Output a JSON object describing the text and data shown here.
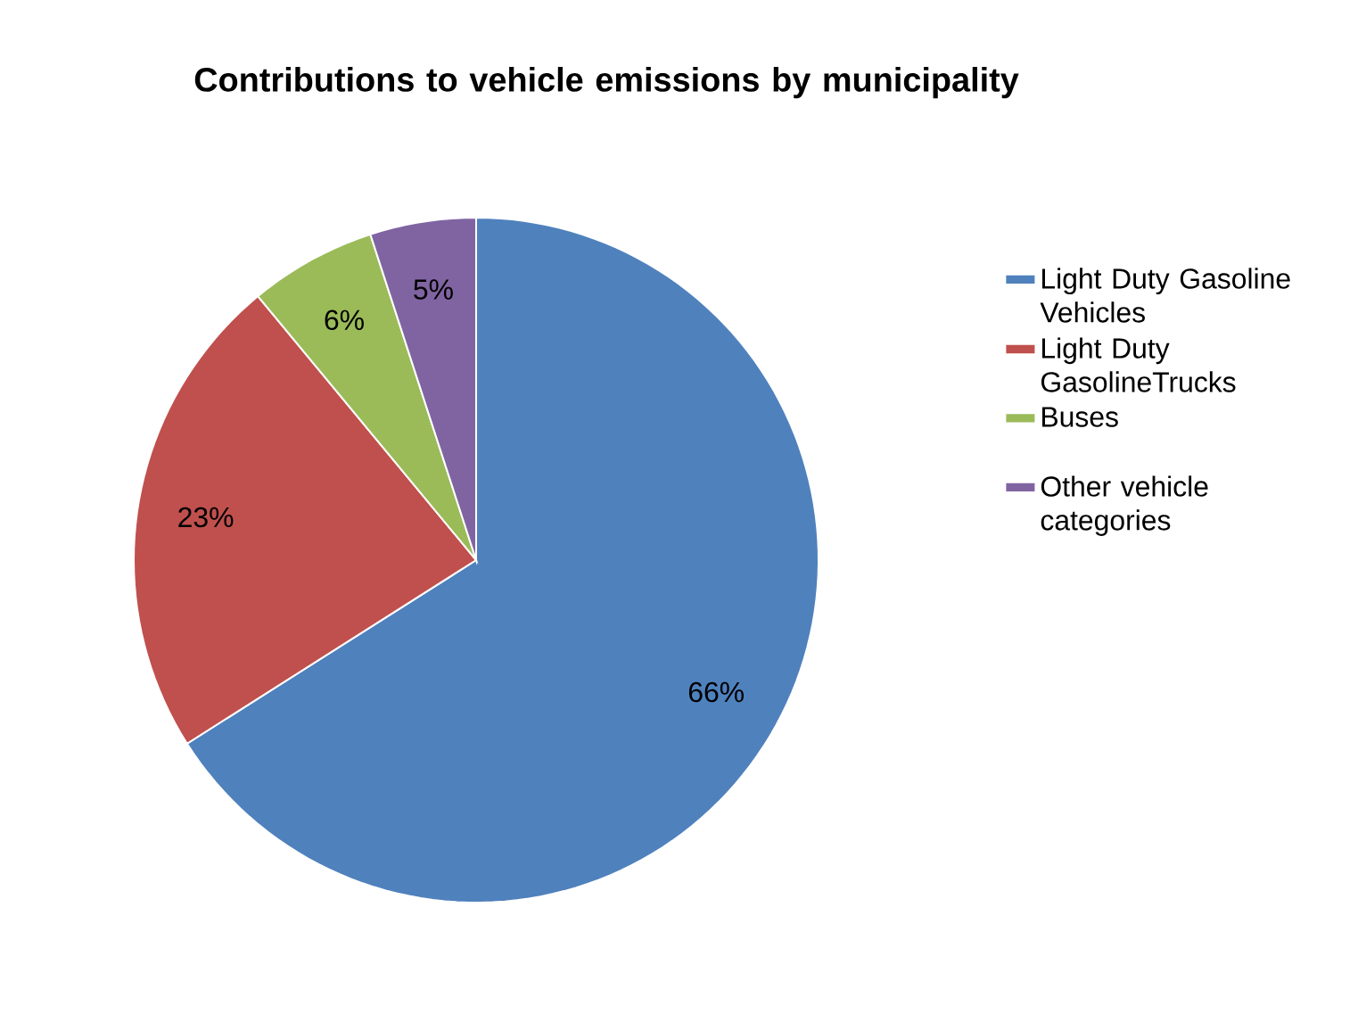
{
  "chart_data": {
    "type": "pie",
    "title": "Contributions to vehicle emissions by municipality",
    "categories": [
      "Light Duty Gasoline Vehicles",
      "Light Duty GasolineTrucks",
      "Buses",
      "Other vehicle categories"
    ],
    "values": [
      66,
      23,
      6,
      5
    ],
    "colors": [
      "#4f81bd",
      "#c0504d",
      "#9bbb59",
      "#8064a2"
    ],
    "value_labels": [
      "66%",
      "23%",
      "6%",
      "5%"
    ],
    "legend": "right"
  }
}
